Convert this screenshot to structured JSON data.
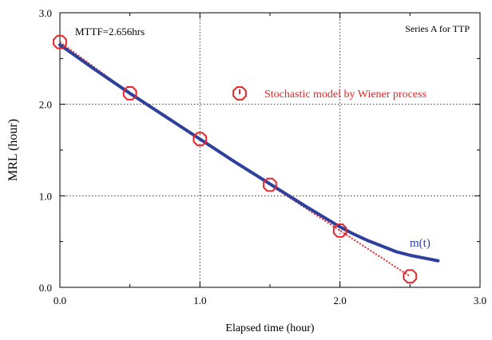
{
  "chart_data": {
    "type": "line",
    "title": "",
    "xlabel": "Elapsed time (hour)",
    "ylabel": "MRL (hour)",
    "xlim": [
      0,
      3
    ],
    "ylim": [
      0,
      3
    ],
    "x_ticks": [
      0,
      1,
      2,
      3
    ],
    "y_ticks": [
      0,
      1,
      2,
      3
    ],
    "x_tick_labels": [
      "0.0",
      "1.0",
      "2.0",
      "3.0"
    ],
    "y_tick_labels": [
      "0.0",
      "1.0",
      "2.0",
      "3.0"
    ],
    "grid": true,
    "grid_style": "dotted",
    "minor_ticks_per_major": 2,
    "legend": {
      "placement": "upper-right",
      "entries": [
        "Stochastic model by Wiener process"
      ]
    },
    "annotations": {
      "top_left": "MTTF=2.656hrs",
      "top_right": "Series A for TTP",
      "curve_label": "m(t)"
    },
    "series": [
      {
        "name": "Stochastic model by Wiener process",
        "style": "dotted-with-octagon-markers",
        "color": "#e8262a",
        "x": [
          0.0,
          0.5,
          1.0,
          1.5,
          2.0,
          2.5
        ],
        "y": [
          2.68,
          2.12,
          1.62,
          1.12,
          0.62,
          0.12
        ]
      },
      {
        "name": "m(t)",
        "style": "solid",
        "color": "#2e3f9c",
        "x": [
          0.0,
          0.25,
          0.5,
          0.75,
          1.0,
          1.25,
          1.5,
          1.75,
          2.0,
          2.1,
          2.2,
          2.3,
          2.4,
          2.5,
          2.6,
          2.7
        ],
        "y": [
          2.65,
          2.38,
          2.12,
          1.87,
          1.62,
          1.37,
          1.13,
          0.89,
          0.66,
          0.58,
          0.51,
          0.45,
          0.39,
          0.35,
          0.32,
          0.29
        ]
      }
    ]
  }
}
